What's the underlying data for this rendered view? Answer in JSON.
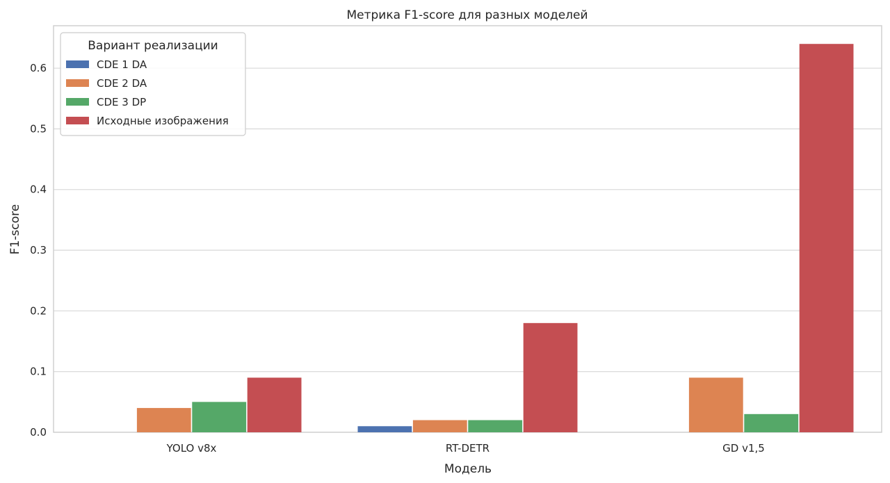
{
  "chart_data": {
    "type": "bar",
    "title": "Метрика F1-score для разных моделей",
    "xlabel": "Модель",
    "ylabel": "F1-score",
    "categories": [
      "YOLO v8x",
      "RT-DETR",
      "GD v1,5"
    ],
    "series": [
      {
        "name": "CDE 1 DA",
        "color": "#4c72b0",
        "values": [
          0.0,
          0.01,
          0.0
        ]
      },
      {
        "name": "CDE 2 DA",
        "color": "#dd8452",
        "values": [
          0.04,
          0.02,
          0.09
        ]
      },
      {
        "name": "CDE 3 DP",
        "color": "#55a868",
        "values": [
          0.05,
          0.02,
          0.03
        ]
      },
      {
        "name": "Исходные изображения",
        "color": "#c44e52",
        "values": [
          0.09,
          0.18,
          0.64
        ]
      }
    ],
    "ylim": [
      0,
      0.67
    ],
    "yticks": [
      "0.0",
      "0.1",
      "0.2",
      "0.3",
      "0.4",
      "0.5",
      "0.6"
    ],
    "grid": true,
    "legend": {
      "title": "Вариант реализации",
      "position": "top-left"
    }
  }
}
